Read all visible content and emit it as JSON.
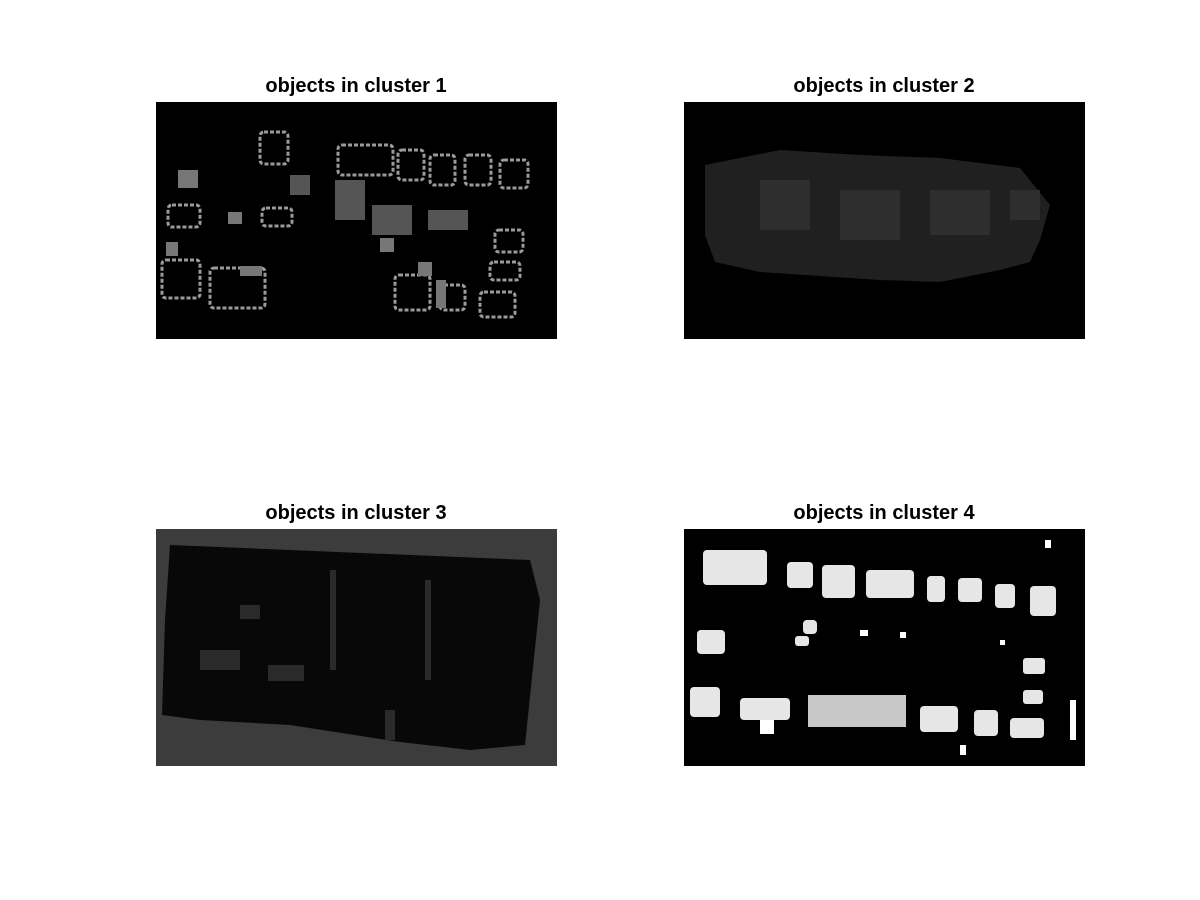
{
  "panels": [
    {
      "title": "objects in cluster 1"
    },
    {
      "title": "objects in cluster 2"
    },
    {
      "title": "objects in cluster 3"
    },
    {
      "title": "objects in cluster 4"
    }
  ]
}
